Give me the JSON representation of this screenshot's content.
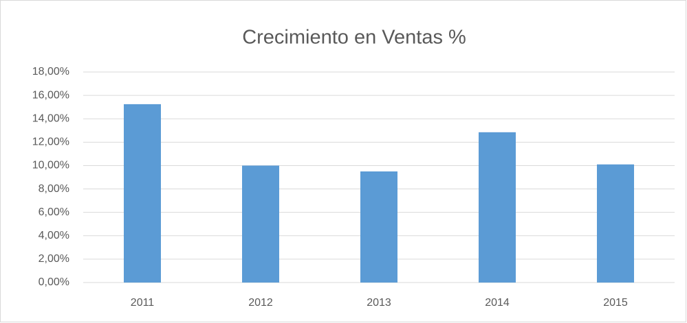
{
  "chart_data": {
    "type": "bar",
    "title": "Crecimiento en Ventas %",
    "categories": [
      "2011",
      "2012",
      "2013",
      "2014",
      "2015"
    ],
    "values": [
      15.25,
      10,
      9.5,
      12.85,
      10.1
    ],
    "color": "#5b9bd5",
    "ylim": [
      0,
      18
    ],
    "yticks": [
      {
        "value": 0,
        "label": "0,00%"
      },
      {
        "value": 2,
        "label": "2,00%"
      },
      {
        "value": 4,
        "label": "4,00%"
      },
      {
        "value": 6,
        "label": "6,00%"
      },
      {
        "value": 8,
        "label": "8,00%"
      },
      {
        "value": 10,
        "label": "10,00%"
      },
      {
        "value": 12,
        "label": "12,00%"
      },
      {
        "value": 14,
        "label": "14,00%"
      },
      {
        "value": 16,
        "label": "16,00%"
      },
      {
        "value": 18,
        "label": "18,00%"
      }
    ],
    "grid": true
  }
}
